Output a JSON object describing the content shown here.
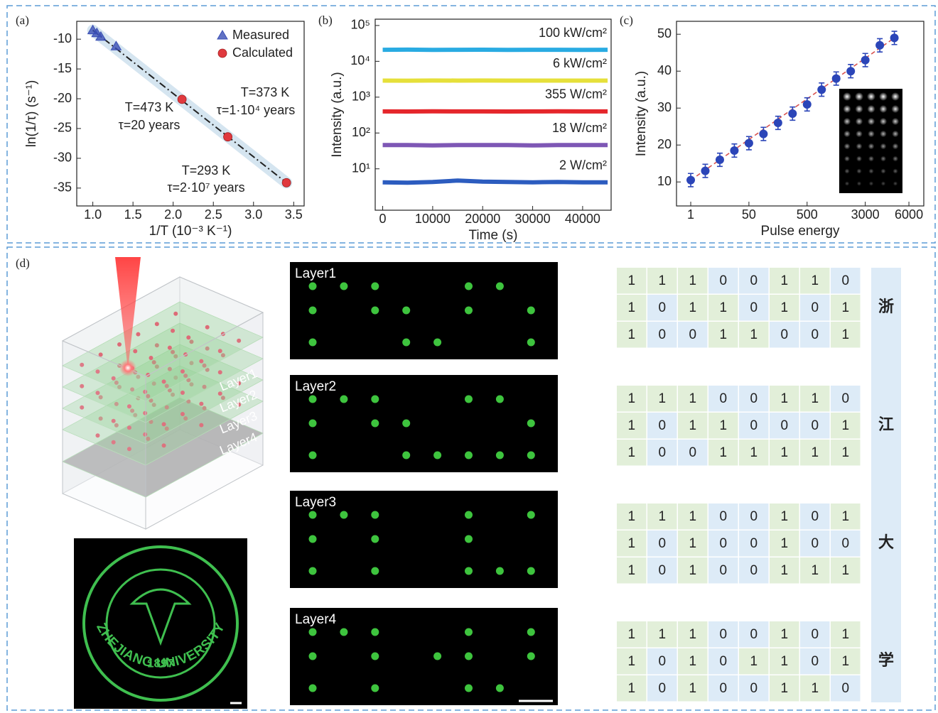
{
  "chart_data": [
    {
      "panel_label": "(a)",
      "type": "scatter",
      "x_label": "1/T (10⁻³ K⁻¹)",
      "y_label": "ln(1/τ) (s⁻¹)",
      "xlim": [
        0.8,
        3.63
      ],
      "ylim": [
        -38,
        -7
      ],
      "xticks": [
        {
          "value": 1,
          "label": "1.0"
        },
        1.5,
        {
          "value": 2,
          "label": "2.0"
        },
        2.5,
        {
          "value": 3,
          "label": "3.0"
        },
        3.5
      ],
      "yticks": [
        -10,
        -15,
        -20,
        -25,
        -30,
        -35
      ],
      "series": [
        {
          "name": "Measured",
          "color": "#3a4fb5",
          "marker": "triangle",
          "x": [
            1.0,
            1.05,
            1.1,
            1.29
          ],
          "values": [
            -8.5,
            -9.0,
            -9.6,
            -11.2
          ]
        },
        {
          "name": "Calculated",
          "color": "#e0393e",
          "marker": "circle",
          "x": [
            2.11,
            2.68,
            3.41
          ],
          "values": [
            -20.1,
            -26.4,
            -34.1
          ]
        }
      ],
      "fit_color": "#222222",
      "legend": "upper right",
      "annotations": [
        "T=473 K",
        "τ=20 years",
        "T=373 K",
        "τ=1·10⁴ years",
        "T=293 K",
        "τ=2·10⁷ years"
      ]
    },
    {
      "panel_label": "(b)",
      "type": "line",
      "x_label": "Time (s)",
      "y_label": "Intensity (a.u.)",
      "log_y": true,
      "xlim": [
        -1500,
        45700
      ],
      "ylim": [
        0.7,
        150000
      ],
      "xticks": [
        0,
        10000,
        20000,
        30000,
        40000
      ],
      "yticks": [
        {
          "value": 10,
          "label": "10¹"
        },
        {
          "value": 100,
          "label": "10²"
        },
        {
          "value": 1000,
          "label": "10³"
        },
        {
          "value": 10000,
          "label": "10⁴"
        },
        {
          "value": 100000,
          "label": "10⁵"
        }
      ],
      "x": [
        0,
        5000,
        10000,
        15000,
        20000,
        25000,
        30000,
        35000,
        40000,
        45000
      ],
      "series": [
        {
          "name": "100 kW/cm²",
          "color": "#29abe2",
          "values": [
            21000,
            21200,
            20800,
            21000,
            21100,
            20900,
            21000,
            21000,
            20900,
            21000
          ]
        },
        {
          "name": "6 kW/cm²",
          "color": "#e6e03a",
          "values": [
            2900,
            2880,
            2920,
            2900,
            2910,
            2890,
            2900,
            2900,
            2890,
            2900
          ]
        },
        {
          "name": "355 W/cm²",
          "color": "#e5262b",
          "values": [
            400,
            398,
            402,
            400,
            401,
            399,
            400,
            402,
            400,
            401
          ]
        },
        {
          "name": "18 W/cm²",
          "color": "#7e57b5",
          "values": [
            46,
            46,
            45,
            46,
            46,
            46,
            45,
            46,
            46,
            46
          ]
        },
        {
          "name": "2 W/cm²",
          "color": "#2c5cbf",
          "values": [
            4.2,
            4.1,
            4.3,
            4.7,
            4.4,
            4.3,
            4.2,
            4.3,
            4.2,
            4.2
          ]
        }
      ]
    },
    {
      "panel_label": "(c)",
      "type": "scatter",
      "x_label": "Pulse energy",
      "y_label": "Intensity (a.u.)",
      "ylim": [
        3.5,
        53.5
      ],
      "yticks": [
        10,
        20,
        30,
        40,
        50
      ],
      "categories": [
        "1",
        null,
        null,
        null,
        "50",
        null,
        null,
        null,
        "500",
        null,
        null,
        null,
        "3000",
        null,
        null,
        "6000"
      ],
      "values": [
        10.5,
        13,
        16,
        18.5,
        20.5,
        23,
        26,
        28.5,
        31,
        35,
        38,
        40,
        43,
        47,
        49,
        null
      ],
      "errors": [
        1.8,
        1.8,
        1.8,
        1.8,
        1.8,
        1.8,
        1.8,
        1.8,
        1.8,
        1.8,
        1.8,
        1.8,
        1.8,
        1.8,
        1.8,
        null
      ],
      "color": "#2b45b8",
      "fit_color": "#d9534f"
    }
  ],
  "panel_d": {
    "panel_label": "(d)",
    "logo_text": [
      "1897",
      "ZHEJIANG UNIVERSITY"
    ],
    "layers": [
      {
        "label": "Layer1",
        "character": "浙",
        "bits": [
          [
            1,
            1,
            1,
            0,
            0,
            1,
            1,
            0
          ],
          [
            1,
            0,
            1,
            1,
            0,
            1,
            0,
            1
          ],
          [
            1,
            0,
            0,
            1,
            1,
            0,
            0,
            1
          ]
        ]
      },
      {
        "label": "Layer2",
        "character": "江",
        "bits": [
          [
            1,
            1,
            1,
            0,
            0,
            1,
            1,
            0
          ],
          [
            1,
            0,
            1,
            1,
            0,
            0,
            0,
            1
          ],
          [
            1,
            0,
            0,
            1,
            1,
            1,
            1,
            1
          ]
        ]
      },
      {
        "label": "Layer3",
        "character": "大",
        "bits": [
          [
            1,
            1,
            1,
            0,
            0,
            1,
            0,
            1
          ],
          [
            1,
            0,
            1,
            0,
            0,
            1,
            0,
            0
          ],
          [
            1,
            0,
            1,
            0,
            0,
            1,
            1,
            1
          ]
        ]
      },
      {
        "label": "Layer4",
        "character": "学",
        "bits": [
          [
            1,
            1,
            1,
            0,
            0,
            1,
            0,
            1
          ],
          [
            1,
            0,
            1,
            0,
            1,
            1,
            0,
            1
          ],
          [
            1,
            0,
            1,
            0,
            0,
            1,
            1,
            0
          ]
        ]
      }
    ]
  }
}
